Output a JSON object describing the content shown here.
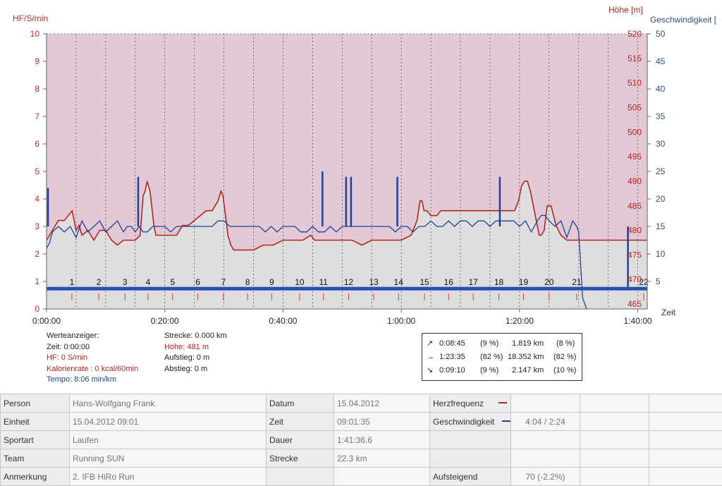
{
  "chart_data": {
    "type": "line",
    "axes": {
      "left": {
        "label": "HF/S/min",
        "range": [
          0,
          10
        ],
        "ticks": [
          "0",
          "1",
          "2",
          "3",
          "4",
          "5",
          "6",
          "7",
          "8",
          "9",
          "10"
        ],
        "color": "#c03030"
      },
      "right_elevation": {
        "label": "Höhe [m]",
        "range": [
          464,
          520
        ],
        "ticks": [
          "465",
          "470",
          "475",
          "480",
          "485",
          "490",
          "495",
          "500",
          "505",
          "510",
          "515",
          "520"
        ],
        "color": "#b02820"
      },
      "right_speed": {
        "label": "Geschwindigkeit [",
        "range": [
          0,
          50
        ],
        "ticks": [
          "5",
          "10",
          "15",
          "20",
          "25",
          "30",
          "35",
          "40",
          "45",
          "50"
        ],
        "color": "#30508a"
      },
      "x": {
        "label": "Zeit",
        "range_seconds": [
          0,
          6096
        ],
        "ticks": [
          "0:00:00",
          "0:20:00",
          "0:40:00",
          "1:00:00",
          "1:20:00",
          "1:40:00"
        ]
      }
    },
    "km_markers": [
      "1",
      "2",
      "3",
      "4",
      "5",
      "6",
      "7",
      "8",
      "9",
      "10",
      "11",
      "12",
      "13",
      "14",
      "15",
      "16",
      "17",
      "18",
      "19",
      "20",
      "21",
      "22"
    ],
    "km_marker_times_seconds": [
      257,
      530,
      796,
      1030,
      1280,
      1535,
      1795,
      2040,
      2285,
      2568,
      2810,
      3065,
      3320,
      3572,
      3835,
      4080,
      4330,
      4590,
      4840,
      5100,
      5380,
      6060
    ],
    "series": [
      {
        "name": "Höhe",
        "color": "#b02820",
        "x_seconds": [
          0,
          60,
          120,
          180,
          260,
          300,
          330,
          360,
          420,
          480,
          540,
          600,
          660,
          720,
          780,
          840,
          900,
          950,
          980,
          1000,
          1020,
          1050,
          1090,
          1110,
          1140,
          1200,
          1260,
          1320,
          1380,
          1440,
          1500,
          1560,
          1620,
          1680,
          1740,
          1770,
          1790,
          1810,
          1840,
          1870,
          1900,
          1950,
          2000,
          2050,
          2100,
          2200,
          2300,
          2400,
          2500,
          2600,
          2680,
          2720,
          2760,
          2850,
          3000,
          3100,
          3200,
          3300,
          3400,
          3500,
          3600,
          3700,
          3760,
          3790,
          3810,
          3830,
          3860,
          3900,
          3960,
          4000,
          4100,
          4200,
          4300,
          4400,
          4500,
          4560,
          4600,
          4660,
          4700,
          4750,
          4790,
          4820,
          4850,
          4880,
          4910,
          4940,
          4980,
          5000,
          5020,
          5050,
          5080,
          5120,
          5170,
          5220,
          5280,
          5350,
          5500,
          5700,
          5900,
          6096
        ],
        "values": [
          478,
          480,
          482,
          482,
          484,
          480,
          481,
          479,
          480,
          478,
          480,
          480,
          478,
          477,
          478,
          478,
          478,
          479,
          487,
          488,
          490,
          488,
          481,
          479,
          479,
          479,
          479,
          479,
          481,
          481,
          482,
          483,
          484,
          484,
          486,
          488,
          487,
          484,
          479,
          477,
          476,
          476,
          476,
          476,
          476,
          477,
          477,
          478,
          478,
          478,
          479,
          478,
          478,
          478,
          478,
          478,
          477,
          478,
          478,
          478,
          478,
          479,
          482,
          486,
          486,
          484,
          484,
          483,
          483,
          484,
          484,
          484,
          484,
          484,
          484,
          484,
          484,
          484,
          484,
          484,
          486,
          489,
          490,
          490,
          488,
          485,
          481,
          479,
          479,
          480,
          485,
          485,
          481,
          479,
          478,
          478,
          478,
          478,
          478,
          478
        ]
      },
      {
        "name": "Geschwindigkeit",
        "color": "#20409a",
        "x_seconds": [
          0,
          30,
          60,
          120,
          180,
          240,
          300,
          360,
          420,
          480,
          540,
          600,
          660,
          720,
          780,
          820,
          860,
          900,
          940,
          980,
          1020,
          1080,
          1140,
          1200,
          1260,
          1320,
          1380,
          1440,
          1500,
          1560,
          1620,
          1680,
          1740,
          1800,
          1860,
          1920,
          1980,
          2040,
          2100,
          2160,
          2220,
          2280,
          2340,
          2400,
          2460,
          2520,
          2580,
          2640,
          2700,
          2760,
          2820,
          2880,
          2940,
          3000,
          3060,
          3120,
          3180,
          3240,
          3300,
          3360,
          3420,
          3480,
          3540,
          3600,
          3660,
          3720,
          3780,
          3840,
          3900,
          3960,
          4020,
          4080,
          4140,
          4200,
          4260,
          4320,
          4380,
          4440,
          4500,
          4560,
          4620,
          4680,
          4740,
          4800,
          4860,
          4920,
          4980,
          5020,
          5060,
          5100,
          5160,
          5220,
          5280,
          5340,
          5380,
          5400,
          5420,
          5440,
          5480
        ],
        "values": [
          11,
          12,
          14,
          15,
          14,
          15,
          13,
          16,
          14,
          15,
          16,
          14,
          15,
          16,
          14,
          15,
          15,
          14,
          15,
          14,
          14,
          15,
          15,
          15,
          14,
          15,
          15,
          15,
          15,
          15,
          15,
          15,
          16,
          16,
          15,
          15,
          15,
          15,
          15,
          15,
          14,
          15,
          14,
          15,
          15,
          15,
          14,
          14,
          15,
          14,
          14,
          15,
          14,
          15,
          15,
          15,
          15,
          15,
          15,
          15,
          15,
          15,
          14,
          15,
          15,
          14,
          15,
          15,
          16,
          15,
          15,
          16,
          15,
          16,
          16,
          15,
          16,
          16,
          15,
          16,
          16,
          16,
          16,
          15,
          16,
          14,
          16,
          17,
          17,
          16,
          15,
          16,
          13,
          16,
          15,
          14,
          8,
          2,
          0
        ]
      },
      {
        "name": "Strecke",
        "color": "#2850b0",
        "x_seconds": [
          0,
          6096
        ],
        "values": [
          0.7,
          0.7
        ]
      }
    ],
    "speed_spikes": [
      {
        "x_seconds": 15,
        "value": 22
      },
      {
        "x_seconds": 930,
        "value": 24
      },
      {
        "x_seconds": 2800,
        "value": 25
      },
      {
        "x_seconds": 3040,
        "value": 24
      },
      {
        "x_seconds": 3090,
        "value": 24
      },
      {
        "x_seconds": 3560,
        "value": 24
      },
      {
        "x_seconds": 4600,
        "value": 24
      },
      {
        "x_seconds": 5900,
        "value": 4
      }
    ],
    "grid": true
  },
  "info": {
    "werteanzeiger": "Werteanzeiger:",
    "zeit": "Zeit: 0:00:00",
    "hf": "HF: 0 S/min",
    "kalorien": "Kalorienrate : 0 kcal/60min",
    "tempo": "Tempo: 8:06 min/km",
    "strecke": "Strecke: 0.000 km",
    "hoehe": "Höhe: 481 m",
    "aufstieg": "Aufstieg: 0 m",
    "abstieg": "Abstieg: 0 m"
  },
  "summary": [
    {
      "arrow": "↗",
      "time": "0:08:45",
      "pct_time": "(9 %)",
      "dist": "1.819 km",
      "pct_dist": "(8 %)"
    },
    {
      "arrow": "→",
      "time": "1:23:35",
      "pct_time": "(82 %)",
      "dist": "18.352 km",
      "pct_dist": "(82 %)"
    },
    {
      "arrow": "↘",
      "time": "0:09:10",
      "pct_time": "(9 %)",
      "dist": "2.147 km",
      "pct_dist": "(10 %)"
    }
  ],
  "details": {
    "person_label": "Person",
    "person": "Hans-Wolfgang Frank",
    "einheit_label": "Einheit",
    "einheit": "15.04.2012 09:01",
    "sportart_label": "Sportart",
    "sportart": "Laufen",
    "team_label": "Team",
    "team": "Running SUN",
    "anmerkung_label": "Anmerkung",
    "anmerkung": "2. IFB HiRo Run",
    "datum_label": "Datum",
    "datum": "15.04.2012",
    "zeit_label": "Zeit",
    "zeit": "09:01:35",
    "dauer_label": "Dauer",
    "dauer": "1:41:36.6",
    "strecke_label": "Strecke",
    "strecke": "22.3 km",
    "hf_label": "Herzfrequenz",
    "geschw_label": "Geschwindigkeit",
    "geschw": "4:04 / 2:24",
    "aufsteigend_label": "Aufsteigend",
    "aufsteigend": "70 (-2.2%)",
    "hf_color": "#b02820",
    "geschw_color": "#20409a"
  }
}
